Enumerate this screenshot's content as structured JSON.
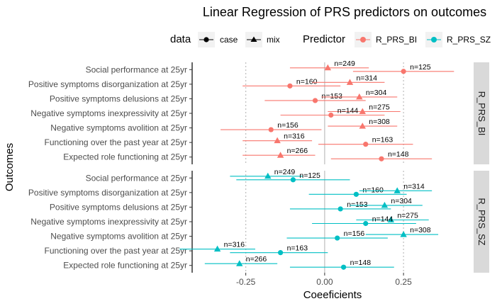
{
  "chart_data": {
    "type": "scatter",
    "subtype": "faceted coefficient plot with error bars",
    "title": "Linear Regression of PRS predictors on outcomes",
    "xlabel": "Coeeficients",
    "ylabel": "Outcomes",
    "xlim": [
      -0.42,
      0.47
    ],
    "xticks": [
      -0.25,
      0,
      0.25
    ],
    "xtick_labels": [
      "-0.25",
      "0.00",
      "0.25"
    ],
    "reference_lines": [
      {
        "x": -0.25,
        "style": "dotted"
      },
      {
        "x": 0,
        "style": "solid"
      },
      {
        "x": 0.25,
        "style": "dotted"
      }
    ],
    "outcomes": [
      "Social performance at 25yr",
      "Positive symptoms disorganization at 25yr",
      "Positive symptoms delusions at 25yr",
      "Negative symptoms inexpressivity at 25yr",
      "Negative symptoms avolition at 25yr",
      "Functioning over the past year at 25yr",
      "Expected role functioning at 25yr"
    ],
    "legend": {
      "data_title": "data",
      "data_items": [
        {
          "label": "case",
          "shape": "circle"
        },
        {
          "label": "mix",
          "shape": "triangle"
        }
      ],
      "predictor_title": "Predictor",
      "predictor_items": [
        {
          "label": "R_PRS_BI",
          "color": "#F8766D"
        },
        {
          "label": "R_PRS_SZ",
          "color": "#00BFC4"
        }
      ],
      "position": "top"
    },
    "facets": [
      {
        "strip": "R_PRS_BI",
        "color": "#F8766D",
        "points": [
          {
            "outcome": "Social performance at 25yr",
            "data": "mix",
            "estimate": 0.01,
            "lo": -0.11,
            "hi": 0.14,
            "n": "n=249"
          },
          {
            "outcome": "Social performance at 25yr",
            "data": "case",
            "estimate": 0.25,
            "lo": 0.09,
            "hi": 0.41,
            "n": "n=125"
          },
          {
            "outcome": "Positive symptoms disorganization at 25yr",
            "data": "case",
            "estimate": -0.11,
            "lo": -0.26,
            "hi": 0.05,
            "n": "n=160"
          },
          {
            "outcome": "Positive symptoms disorganization at 25yr",
            "data": "mix",
            "estimate": 0.08,
            "lo": -0.04,
            "hi": 0.19,
            "n": "n=314"
          },
          {
            "outcome": "Positive symptoms delusions at 25yr",
            "data": "case",
            "estimate": -0.03,
            "lo": -0.19,
            "hi": 0.13,
            "n": "n=153"
          },
          {
            "outcome": "Positive symptoms delusions at 25yr",
            "data": "mix",
            "estimate": 0.11,
            "lo": -0.01,
            "hi": 0.23,
            "n": "n=304"
          },
          {
            "outcome": "Negative symptoms inexpressivity at 25yr",
            "data": "mix",
            "estimate": 0.12,
            "lo": 0.01,
            "hi": 0.24,
            "n": "n=275"
          },
          {
            "outcome": "Negative symptoms inexpressivity at 25yr",
            "data": "case",
            "estimate": 0.02,
            "lo": -0.14,
            "hi": 0.19,
            "n": "n=144"
          },
          {
            "outcome": "Negative symptoms avolition at 25yr",
            "data": "case",
            "estimate": -0.17,
            "lo": -0.33,
            "hi": -0.01,
            "n": "n=156"
          },
          {
            "outcome": "Negative symptoms avolition at 25yr",
            "data": "mix",
            "estimate": 0.12,
            "lo": 0.01,
            "hi": 0.23,
            "n": "n=308"
          },
          {
            "outcome": "Functioning over the past year at 25yr",
            "data": "mix",
            "estimate": -0.15,
            "lo": -0.26,
            "hi": -0.04,
            "n": "n=316"
          },
          {
            "outcome": "Functioning over the past year at 25yr",
            "data": "case",
            "estimate": 0.13,
            "lo": -0.02,
            "hi": 0.28,
            "n": "n=163"
          },
          {
            "outcome": "Expected role functioning at 25yr",
            "data": "mix",
            "estimate": -0.14,
            "lo": -0.26,
            "hi": -0.03,
            "n": "n=266"
          },
          {
            "outcome": "Expected role functioning at 25yr",
            "data": "case",
            "estimate": 0.18,
            "lo": 0.02,
            "hi": 0.34,
            "n": "n=148"
          }
        ]
      },
      {
        "strip": "R_PRS_SZ",
        "color": "#00BFC4",
        "points": [
          {
            "outcome": "Social performance at 25yr",
            "data": "mix",
            "estimate": -0.18,
            "lo": -0.3,
            "hi": -0.07,
            "n": "n=249"
          },
          {
            "outcome": "Social performance at 25yr",
            "data": "case",
            "estimate": -0.1,
            "lo": -0.28,
            "hi": 0.08,
            "n": "n=125"
          },
          {
            "outcome": "Positive symptoms disorganization at 25yr",
            "data": "case",
            "estimate": 0.1,
            "lo": -0.05,
            "hi": 0.26,
            "n": "n=160"
          },
          {
            "outcome": "Positive symptoms disorganization at 25yr",
            "data": "mix",
            "estimate": 0.23,
            "lo": 0.11,
            "hi": 0.34,
            "n": "n=314"
          },
          {
            "outcome": "Positive symptoms delusions at 25yr",
            "data": "case",
            "estimate": 0.05,
            "lo": -0.11,
            "hi": 0.21,
            "n": "n=153"
          },
          {
            "outcome": "Positive symptoms delusions at 25yr",
            "data": "mix",
            "estimate": 0.19,
            "lo": 0.08,
            "hi": 0.31,
            "n": "n=304"
          },
          {
            "outcome": "Negative symptoms inexpressivity at 25yr",
            "data": "mix",
            "estimate": 0.21,
            "lo": 0.1,
            "hi": 0.33,
            "n": "n=275"
          },
          {
            "outcome": "Negative symptoms inexpressivity at 25yr",
            "data": "case",
            "estimate": 0.13,
            "lo": -0.04,
            "hi": 0.29,
            "n": "n=144"
          },
          {
            "outcome": "Negative symptoms avolition at 25yr",
            "data": "case",
            "estimate": 0.04,
            "lo": -0.12,
            "hi": 0.2,
            "n": "n=156"
          },
          {
            "outcome": "Negative symptoms avolition at 25yr",
            "data": "mix",
            "estimate": 0.25,
            "lo": 0.13,
            "hi": 0.36,
            "n": "n=308"
          },
          {
            "outcome": "Functioning over the past year at 25yr",
            "data": "mix",
            "estimate": -0.34,
            "lo": -0.46,
            "hi": -0.22,
            "n": "n=316"
          },
          {
            "outcome": "Functioning over the past year at 25yr",
            "data": "case",
            "estimate": -0.14,
            "lo": -0.3,
            "hi": 0.01,
            "n": "n=163"
          },
          {
            "outcome": "Expected role functioning at 25yr",
            "data": "mix",
            "estimate": -0.27,
            "lo": -0.38,
            "hi": -0.15,
            "n": "n=266"
          },
          {
            "outcome": "Expected role functioning at 25yr",
            "data": "case",
            "estimate": 0.06,
            "lo": -0.11,
            "hi": 0.22,
            "n": "n=148"
          }
        ]
      }
    ]
  }
}
